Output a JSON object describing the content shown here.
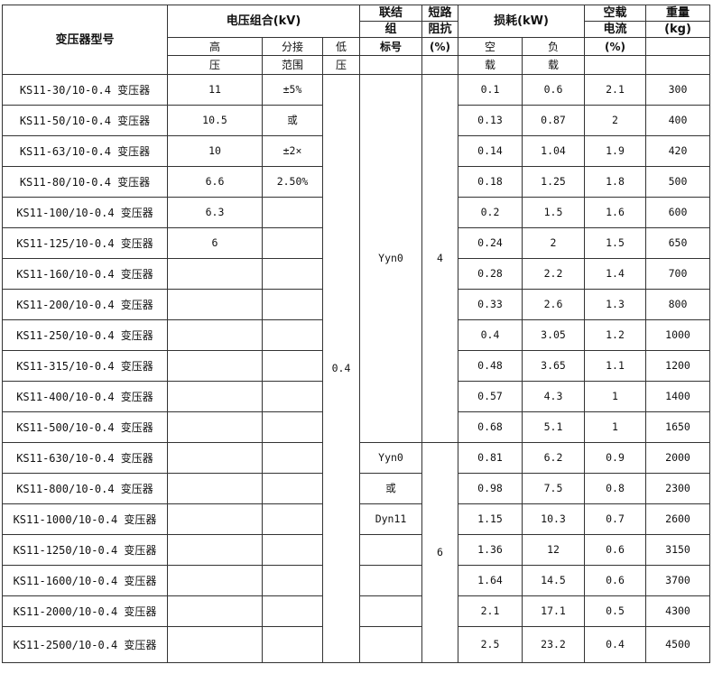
{
  "header": {
    "model": "变压器型号",
    "voltage_group": "电压组合(kV)",
    "high_1": "高",
    "high_2": "压",
    "tap_1": "分接",
    "tap_2": "范围",
    "low_1": "低",
    "low_2": "压",
    "connection_1": "联结",
    "connection_2": "组",
    "connection_3": "标号",
    "impedance_1": "短路",
    "impedance_2": "阻抗",
    "impedance_3": "(%)",
    "loss": "损耗(kW)",
    "noload_1": "空",
    "noload_2": "载",
    "load_1": "负",
    "load_2": "载",
    "current_1": "空载",
    "current_2": "电流",
    "current_3": "(%)",
    "weight_1": "重量",
    "weight_2": "(kg)"
  },
  "low_voltage": "0.4",
  "connection_merged": "Yyn0",
  "impedance_groups": [
    "4",
    "6"
  ],
  "rows": [
    {
      "model": "KS11-30/10-0.4 变压器",
      "high": "11",
      "tap": "±5%",
      "connection": "",
      "noload": "0.1",
      "load": "0.6",
      "current": "2.1",
      "weight": "300"
    },
    {
      "model": "KS11-50/10-0.4 变压器",
      "high": "10.5",
      "tap": "或",
      "connection": "",
      "noload": "0.13",
      "load": "0.87",
      "current": "2",
      "weight": "400"
    },
    {
      "model": "KS11-63/10-0.4 变压器",
      "high": "10",
      "tap": "±2×",
      "connection": "",
      "noload": "0.14",
      "load": "1.04",
      "current": "1.9",
      "weight": "420"
    },
    {
      "model": "KS11-80/10-0.4 变压器",
      "high": "6.6",
      "tap": "2.50%",
      "connection": "",
      "noload": "0.18",
      "load": "1.25",
      "current": "1.8",
      "weight": "500"
    },
    {
      "model": "KS11-100/10-0.4 变压器",
      "high": "6.3",
      "tap": "",
      "connection": "",
      "noload": "0.2",
      "load": "1.5",
      "current": "1.6",
      "weight": "600"
    },
    {
      "model": "KS11-125/10-0.4 变压器",
      "high": "6",
      "tap": "",
      "connection": "",
      "noload": "0.24",
      "load": "2",
      "current": "1.5",
      "weight": "650"
    },
    {
      "model": "KS11-160/10-0.4 变压器",
      "high": "",
      "tap": "",
      "connection": "",
      "noload": "0.28",
      "load": "2.2",
      "current": "1.4",
      "weight": "700"
    },
    {
      "model": "KS11-200/10-0.4 变压器",
      "high": "",
      "tap": "",
      "connection": "",
      "noload": "0.33",
      "load": "2.6",
      "current": "1.3",
      "weight": "800"
    },
    {
      "model": "KS11-250/10-0.4 变压器",
      "high": "",
      "tap": "",
      "connection": "",
      "noload": "0.4",
      "load": "3.05",
      "current": "1.2",
      "weight": "1000"
    },
    {
      "model": "KS11-315/10-0.4 变压器",
      "high": "",
      "tap": "",
      "connection": "",
      "noload": "0.48",
      "load": "3.65",
      "current": "1.1",
      "weight": "1200"
    },
    {
      "model": "KS11-400/10-0.4 变压器",
      "high": "",
      "tap": "",
      "connection": "",
      "noload": "0.57",
      "load": "4.3",
      "current": "1",
      "weight": "1400"
    },
    {
      "model": "KS11-500/10-0.4 变压器",
      "high": "",
      "tap": "",
      "connection": "",
      "noload": "0.68",
      "load": "5.1",
      "current": "1",
      "weight": "1650"
    },
    {
      "model": "KS11-630/10-0.4 变压器",
      "high": "",
      "tap": "",
      "connection": "Yyn0",
      "noload": "0.81",
      "load": "6.2",
      "current": "0.9",
      "weight": "2000"
    },
    {
      "model": "KS11-800/10-0.4 变压器",
      "high": "",
      "tap": "",
      "connection": "或",
      "noload": "0.98",
      "load": "7.5",
      "current": "0.8",
      "weight": "2300"
    },
    {
      "model": "KS11-1000/10-0.4 变压器",
      "high": "",
      "tap": "",
      "connection": "Dyn11",
      "noload": "1.15",
      "load": "10.3",
      "current": "0.7",
      "weight": "2600"
    },
    {
      "model": "KS11-1250/10-0.4 变压器",
      "high": "",
      "tap": "",
      "connection": "",
      "noload": "1.36",
      "load": "12",
      "current": "0.6",
      "weight": "3150"
    },
    {
      "model": "KS11-1600/10-0.4 变压器",
      "high": "",
      "tap": "",
      "connection": "",
      "noload": "1.64",
      "load": "14.5",
      "current": "0.6",
      "weight": "3700"
    },
    {
      "model": "KS11-2000/10-0.4 变压器",
      "high": "",
      "tap": "",
      "connection": "",
      "noload": "2.1",
      "load": "17.1",
      "current": "0.5",
      "weight": "4300"
    },
    {
      "model": "KS11-2500/10-0.4 变压器",
      "high": "",
      "tap": "",
      "connection": "",
      "noload": "2.5",
      "load": "23.2",
      "current": "0.4",
      "weight": "4500"
    }
  ]
}
